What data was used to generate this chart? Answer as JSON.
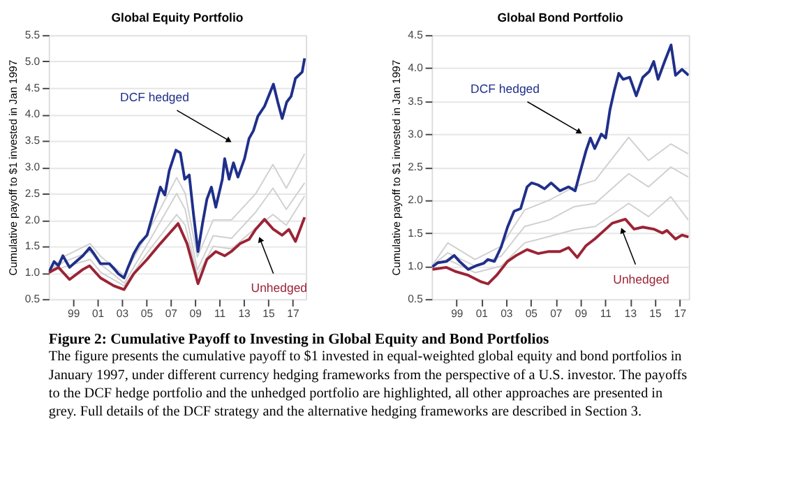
{
  "chart_data": [
    {
      "type": "line",
      "title": "Global Equity Portfolio",
      "ylabel": "Cumulative payoff to $1 invested in Jan 1997",
      "xlim": [
        1997,
        2018.1
      ],
      "ylim": [
        0.5,
        5.5
      ],
      "xticks": [
        {
          "value": 1999,
          "label": "99"
        },
        {
          "value": 2001,
          "label": "01"
        },
        {
          "value": 2003,
          "label": "03"
        },
        {
          "value": 2005,
          "label": "05"
        },
        {
          "value": 2007,
          "label": "07"
        },
        {
          "value": 2009,
          "label": "09"
        },
        {
          "value": 2011,
          "label": "11"
        },
        {
          "value": 2013,
          "label": "13"
        },
        {
          "value": 2015,
          "label": "15"
        },
        {
          "value": 2017,
          "label": "17"
        }
      ],
      "yticks": [
        0.5,
        {
          "value": 1,
          "label": "1.0"
        },
        1.5,
        {
          "value": 2,
          "label": "2.0"
        },
        2.5,
        {
          "value": 3,
          "label": "3.0"
        },
        3.5,
        {
          "value": 4,
          "label": "4.0"
        },
        4.5,
        {
          "value": 5,
          "label": "5.0"
        },
        5.5
      ],
      "grid": "y",
      "line_style": "solid",
      "marker": "none",
      "series": [
        {
          "color": "#1f2f8a",
          "x": [
            1997.0,
            1997.44,
            1997.8,
            1998.16,
            1998.71,
            1999.25,
            1999.8,
            2000.35,
            2000.71,
            2001.25,
            2001.98,
            2002.42,
            2002.71,
            2003.18,
            2003.51,
            2003.98,
            2004.45,
            2005.07,
            2005.62,
            2006.16,
            2006.53,
            2006.89,
            2007.44,
            2007.8,
            2008.16,
            2008.53,
            2008.89,
            2009.25,
            2009.62,
            2009.98,
            2010.35,
            2010.71,
            2011.25,
            2011.44,
            2011.8,
            2012.16,
            2012.53,
            2013.07,
            2013.44,
            2013.8,
            2014.16,
            2014.71,
            2015.44,
            2015.8,
            2016.16,
            2016.53,
            2016.89,
            2017.25,
            2017.8,
            2018.0
          ],
          "values": [
            1.0,
            1.21,
            1.13,
            1.32,
            1.1,
            1.21,
            1.32,
            1.47,
            1.36,
            1.17,
            1.17,
            1.06,
            0.98,
            0.9,
            1.1,
            1.36,
            1.55,
            1.71,
            2.16,
            2.62,
            2.47,
            2.93,
            3.32,
            3.27,
            2.77,
            2.85,
            2.09,
            1.4,
            1.93,
            2.39,
            2.62,
            2.24,
            2.77,
            3.16,
            2.77,
            3.08,
            2.81,
            3.16,
            3.54,
            3.69,
            3.96,
            4.15,
            4.57,
            4.23,
            3.92,
            4.23,
            4.34,
            4.68,
            4.8,
            5.06
          ]
        },
        {
          "color": "#9b2335",
          "x": [
            1997.0,
            1997.8,
            1998.71,
            1999.8,
            2000.35,
            2001.25,
            2002.35,
            2003.18,
            2003.98,
            2005.07,
            2006.16,
            2006.89,
            2007.62,
            2008.35,
            2009.25,
            2009.98,
            2010.71,
            2011.44,
            2011.98,
            2012.71,
            2013.44,
            2013.98,
            2014.71,
            2015.44,
            2016.16,
            2016.71,
            2017.25,
            2018.0
          ],
          "values": [
            1.0,
            1.1,
            0.87,
            1.06,
            1.13,
            0.9,
            0.75,
            0.68,
            0.98,
            1.25,
            1.55,
            1.74,
            1.93,
            1.55,
            0.79,
            1.25,
            1.4,
            1.32,
            1.4,
            1.55,
            1.63,
            1.82,
            2.01,
            1.82,
            1.71,
            1.82,
            1.59,
            2.05
          ]
        },
        {
          "color": "#d0d0d0",
          "x": [
            1997,
            1998.2,
            2000.4,
            2001.3,
            2003.2,
            2005,
            2007.5,
            2008.2,
            2009.2,
            2010.5,
            2012,
            2014,
            2015.4,
            2016.5,
            2018
          ],
          "values": [
            1.0,
            1.3,
            1.55,
            1.3,
            0.95,
            1.7,
            2.8,
            2.5,
            1.3,
            2.0,
            2.0,
            2.5,
            3.05,
            2.6,
            3.25
          ]
        },
        {
          "color": "#d0d0d0",
          "x": [
            1997,
            1998.2,
            2000.4,
            2001.3,
            2003.2,
            2005,
            2007.5,
            2008.2,
            2009.2,
            2010.5,
            2012,
            2014,
            2015.4,
            2016.5,
            2018
          ],
          "values": [
            1.0,
            1.2,
            1.4,
            1.15,
            0.8,
            1.5,
            2.5,
            2.2,
            1.05,
            1.7,
            1.65,
            2.15,
            2.6,
            2.2,
            2.7
          ]
        },
        {
          "color": "#d0d0d0",
          "x": [
            1997,
            1998.2,
            2000.4,
            2001.3,
            2003.2,
            2005,
            2007.5,
            2008.2,
            2009.2,
            2010.5,
            2012,
            2014,
            2015.4,
            2016.5,
            2018
          ],
          "values": [
            1.0,
            1.1,
            1.25,
            1.0,
            0.75,
            1.35,
            2.1,
            1.9,
            0.95,
            1.5,
            1.45,
            1.85,
            2.1,
            1.9,
            2.45
          ]
        }
      ],
      "annotations": [
        {
          "text": "DCF hedged",
          "x": 2011.8,
          "y": 3.5
        },
        {
          "text": "Unhedged",
          "x": 2014.35,
          "y": 1.63
        },
        "Figure 2: Cumulative Payoff to Investing in Global Equity and Bond Portfolios",
        "The figure presents the cumulative payoff to $1 invested in equal-weighted global equity and bond portfolios in January 1997, under different currency hedging frameworks from the perspective of a U.S. investor. The payoffs to the DCF hedge portfolio and the unhedged portfolio are highlighted, all other approaches are presented in grey. Full details of the DCF strategy and the alternative hedging frameworks are described in Section 3."
      ]
    },
    {
      "type": "line",
      "title": "Global Bond Portfolio",
      "ylabel": "Cumulative payoff to $1 invested in Jan 1997",
      "xlim": [
        1997,
        2017.75
      ],
      "ylim": [
        0.5,
        4.5
      ],
      "xticks": [
        {
          "value": 1999,
          "label": "99"
        },
        {
          "value": 2001,
          "label": "01"
        },
        {
          "value": 2003,
          "label": "03"
        },
        {
          "value": 2005,
          "label": "05"
        },
        {
          "value": 2007,
          "label": "07"
        },
        {
          "value": 2009,
          "label": "09"
        },
        {
          "value": 2011,
          "label": "11"
        },
        {
          "value": 2013,
          "label": "13"
        },
        {
          "value": 2015,
          "label": "15"
        },
        {
          "value": 2017,
          "label": "17"
        }
      ],
      "yticks": [
        0.5,
        {
          "value": 1,
          "label": "1.0"
        },
        1.5,
        {
          "value": 2,
          "label": "2.0"
        },
        2.5,
        {
          "value": 3,
          "label": "3.0"
        },
        3.5,
        {
          "value": 4,
          "label": "4.0"
        },
        4.5
      ],
      "grid": "y",
      "line_style": "solid",
      "marker": "none",
      "series": [
        {
          "color": "#1f2f8a",
          "x": [
            1997.06,
            1997.49,
            1998.19,
            1998.82,
            1999.25,
            1999.95,
            2000.65,
            2001.18,
            2001.54,
            2002.06,
            2002.59,
            2003.12,
            2003.65,
            2004.18,
            2004.7,
            2005.06,
            2005.58,
            2006.11,
            2006.64,
            2007.35,
            2008.05,
            2008.58,
            2008.93,
            2009.46,
            2009.81,
            2010.16,
            2010.69,
            2011.04,
            2011.39,
            2011.75,
            2012.1,
            2012.45,
            2012.98,
            2013.51,
            2014.04,
            2014.56,
            2014.92,
            2015.27,
            2015.8,
            2016.32,
            2016.68,
            2017.2,
            2017.73
          ],
          "values": [
            0.99,
            1.05,
            1.07,
            1.16,
            1.07,
            0.95,
            1.01,
            1.04,
            1.1,
            1.07,
            1.28,
            1.59,
            1.83,
            1.87,
            2.2,
            2.26,
            2.23,
            2.17,
            2.26,
            2.14,
            2.2,
            2.14,
            2.39,
            2.75,
            2.94,
            2.78,
            3.0,
            2.94,
            3.37,
            3.67,
            3.92,
            3.83,
            3.86,
            3.58,
            3.86,
            3.95,
            4.1,
            3.83,
            4.1,
            4.35,
            3.89,
            3.98,
            3.89
          ]
        },
        {
          "color": "#9b2335",
          "x": [
            1997.06,
            1998.19,
            1998.89,
            1999.95,
            2001.01,
            2001.54,
            2002.24,
            2003.12,
            2003.82,
            2004.7,
            2005.58,
            2006.46,
            2007.35,
            2008.05,
            2008.75,
            2009.46,
            2010.16,
            2010.87,
            2011.57,
            2012.63,
            2013.33,
            2014.04,
            2014.92,
            2015.62,
            2015.98,
            2016.68,
            2017.2,
            2017.73
          ],
          "values": [
            0.95,
            0.98,
            0.92,
            0.86,
            0.76,
            0.73,
            0.86,
            1.07,
            1.16,
            1.25,
            1.19,
            1.22,
            1.22,
            1.28,
            1.13,
            1.31,
            1.41,
            1.53,
            1.65,
            1.71,
            1.56,
            1.59,
            1.56,
            1.5,
            1.54,
            1.41,
            1.47,
            1.44
          ]
        },
        {
          "color": "#d0d0d0",
          "x": [
            1997,
            1998.3,
            2000.5,
            2002.6,
            2004.5,
            2006.5,
            2008.5,
            2010.2,
            2012.9,
            2014.5,
            2016.3,
            2017.7
          ],
          "values": [
            1.0,
            1.35,
            1.1,
            1.3,
            1.85,
            2.0,
            2.2,
            2.3,
            2.95,
            2.6,
            2.85,
            2.7
          ]
        },
        {
          "color": "#d0d0d0",
          "x": [
            1997,
            1998.3,
            2000.5,
            2002.6,
            2004.5,
            2006.5,
            2008.5,
            2010.2,
            2012.9,
            2014.5,
            2016.3,
            2017.7
          ],
          "values": [
            1.0,
            1.2,
            1.0,
            1.15,
            1.6,
            1.7,
            1.9,
            1.95,
            2.4,
            2.2,
            2.5,
            2.35
          ]
        },
        {
          "color": "#d0d0d0",
          "x": [
            1997,
            1998.3,
            2000.5,
            2002.6,
            2004.5,
            2006.5,
            2008.5,
            2010.2,
            2012.9,
            2014.5,
            2016.3,
            2017.7
          ],
          "values": [
            1.0,
            1.1,
            0.9,
            1.0,
            1.35,
            1.45,
            1.55,
            1.6,
            1.95,
            1.75,
            2.05,
            1.7
          ]
        }
      ],
      "annotations": [
        {
          "text": "DCF hedged",
          "x": 2008.93,
          "y": 3.03
        },
        {
          "text": "Unhedged",
          "x": 2012.38,
          "y": 1.54
        }
      ]
    }
  ]
}
